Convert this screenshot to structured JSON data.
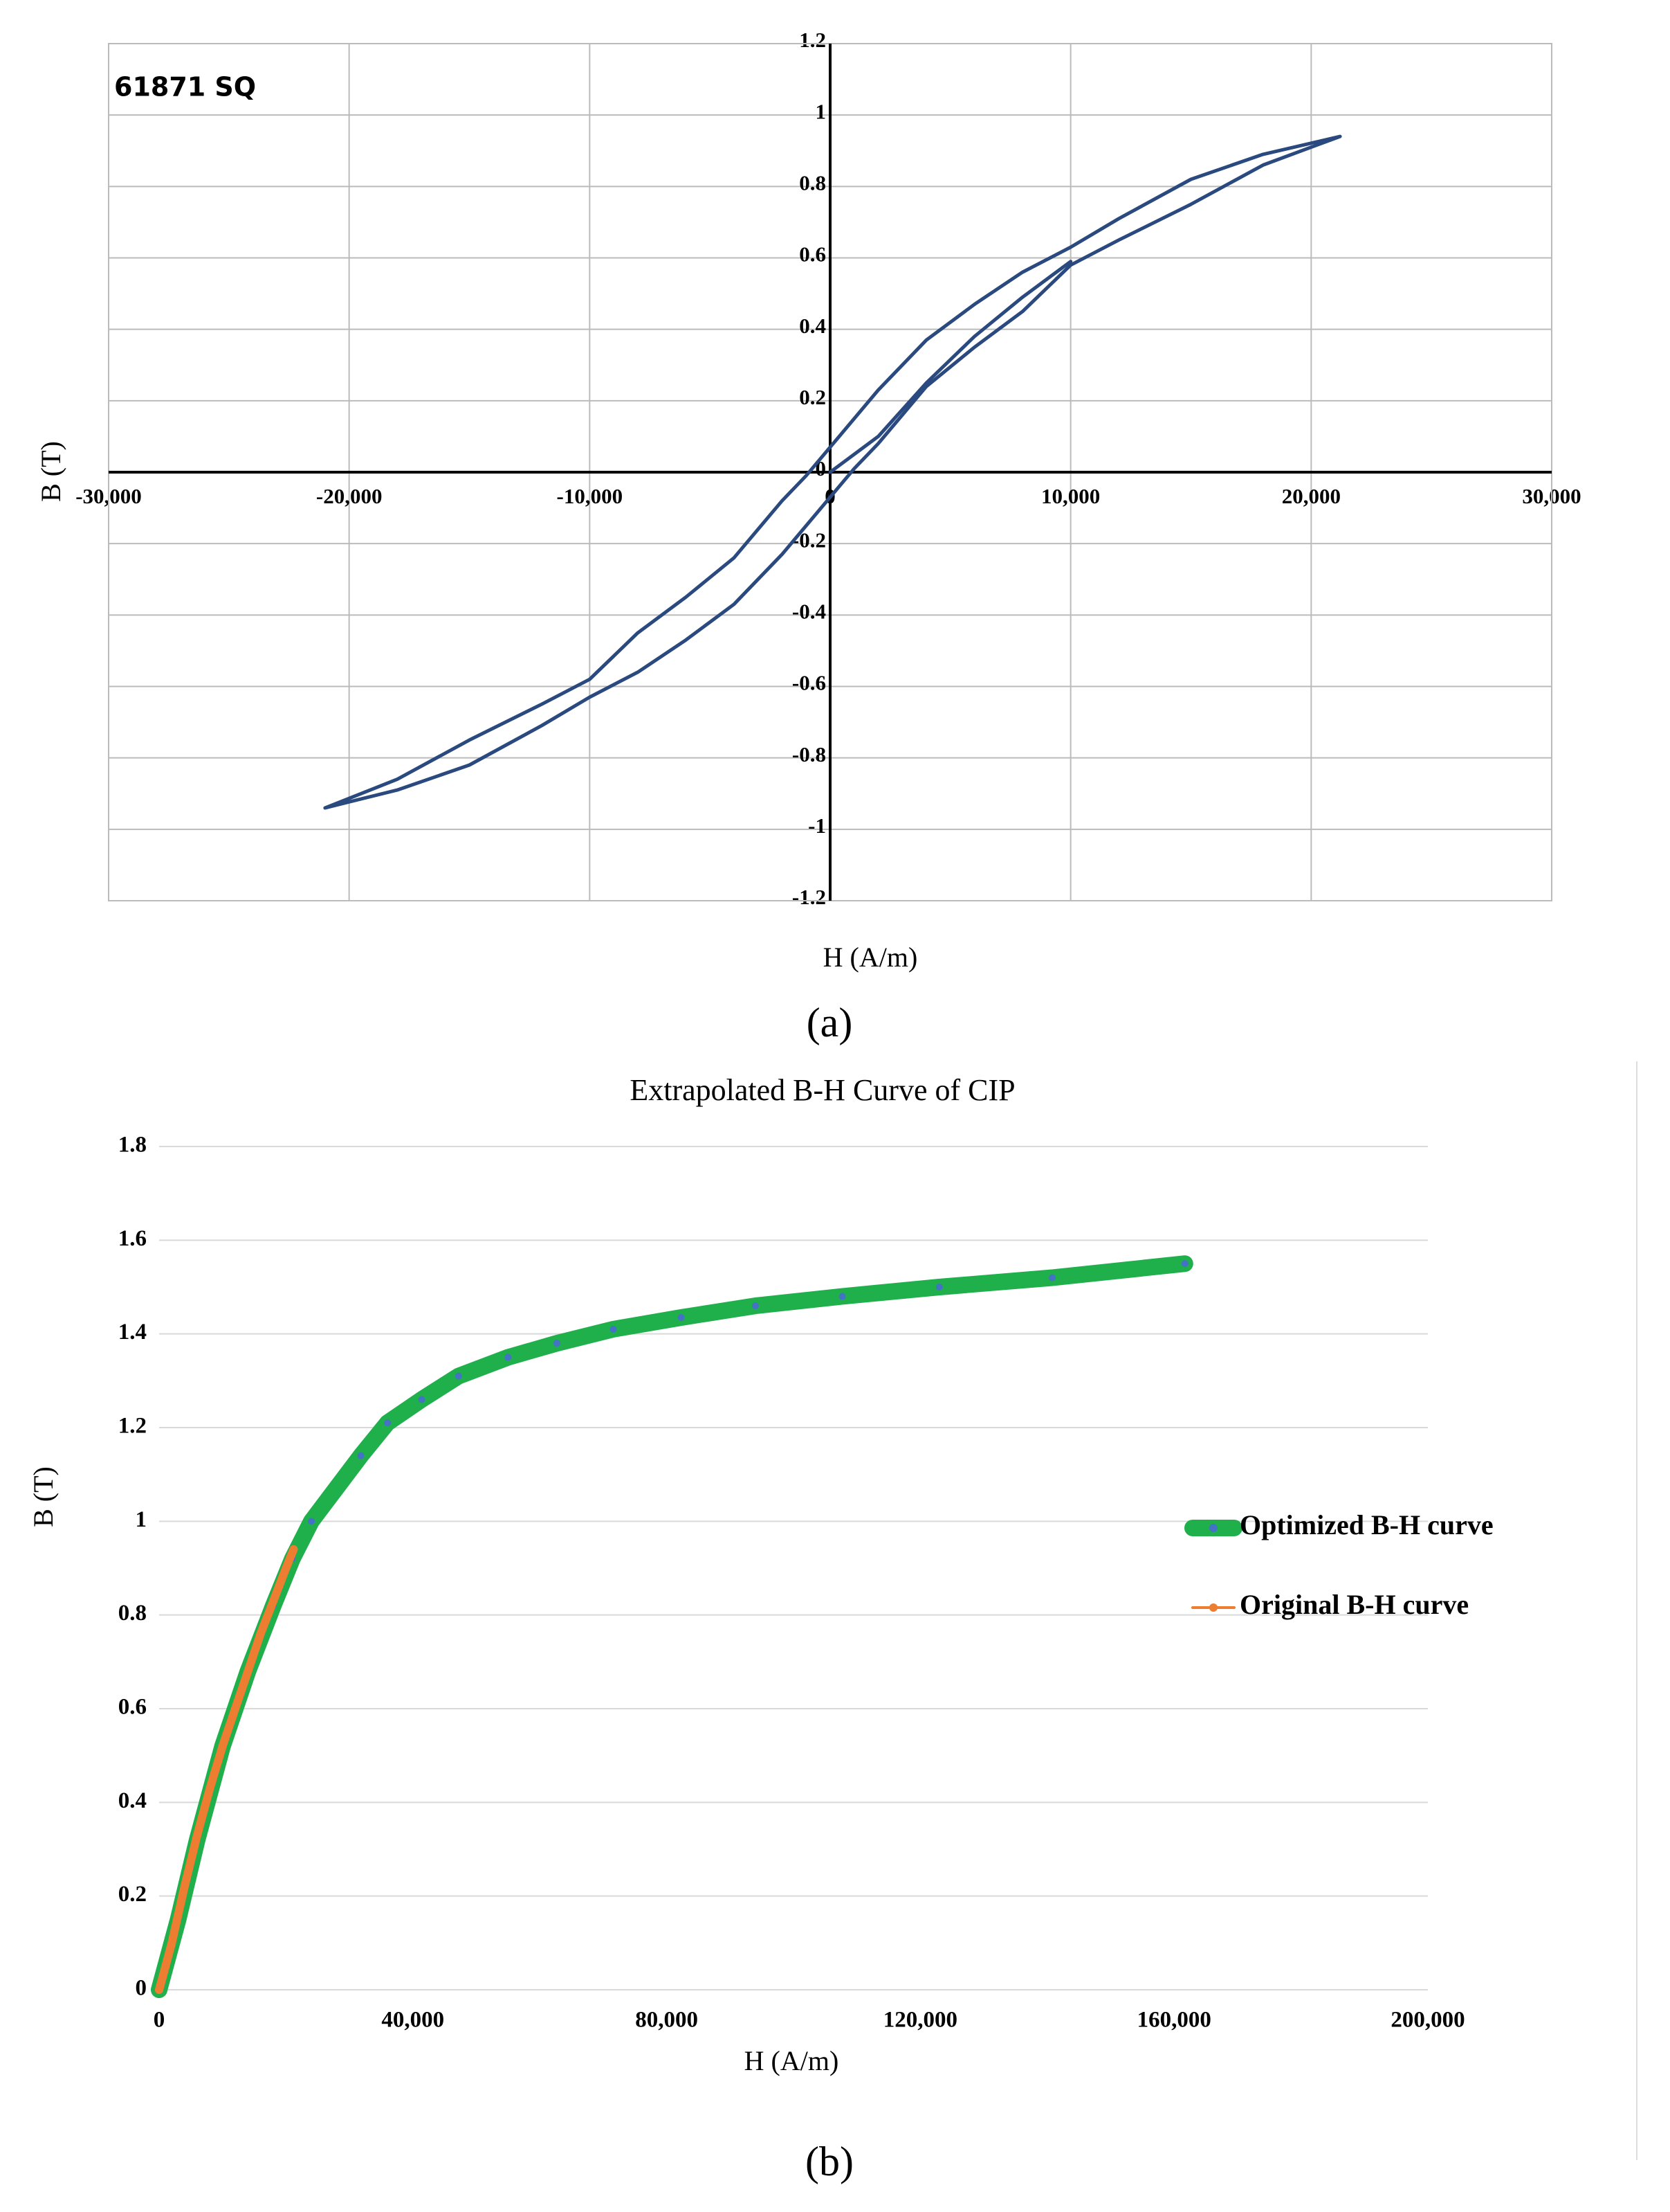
{
  "chart_data": [
    {
      "type": "line",
      "annotation": "61871 SQ",
      "x_label": "H (A/m)",
      "y_label": "B (T)",
      "caption": "(a)",
      "xlim": [
        -30000,
        30000
      ],
      "xticks": [
        {
          "value": -30000,
          "label": "-30,000"
        },
        {
          "value": -20000,
          "label": "-20,000"
        },
        {
          "value": -10000,
          "label": "-10,000"
        },
        0,
        {
          "value": 10000,
          "label": "10,000"
        },
        {
          "value": 20000,
          "label": "20,000"
        },
        {
          "value": 30000,
          "label": "30,000"
        }
      ],
      "ylim": [
        -1.2,
        1.2
      ],
      "yticks": [
        -1.2,
        -1,
        -0.8,
        -0.6,
        -0.4,
        -0.2,
        0,
        0.2,
        0.4,
        0.6,
        0.8,
        1,
        1.2
      ],
      "grid": true,
      "series": [
        {
          "color": "#2a4a7f",
          "x": [
            21200,
            18000,
            15000,
            12000,
            10000,
            8000,
            6000,
            4000,
            2000,
            0,
            -1000,
            -2000,
            -4000,
            -6000,
            -8000,
            -10000,
            -12000,
            -15000,
            -18000,
            -21000,
            -18000,
            -15000,
            -12000,
            -10000,
            -8000,
            -6000,
            -4000,
            -2000,
            0,
            1000,
            2000,
            4000,
            6000,
            8000,
            10000,
            12000,
            15000,
            18000,
            21200
          ],
          "values": [
            0.94,
            0.89,
            0.82,
            0.71,
            0.63,
            0.56,
            0.47,
            0.37,
            0.23,
            0.07,
            -0.01,
            -0.08,
            -0.24,
            -0.35,
            -0.45,
            -0.58,
            -0.65,
            -0.75,
            -0.86,
            -0.94,
            -0.89,
            -0.82,
            -0.71,
            -0.63,
            -0.56,
            -0.47,
            -0.37,
            -0.23,
            -0.07,
            0.01,
            0.08,
            0.24,
            0.35,
            0.45,
            0.58,
            0.65,
            0.75,
            0.86,
            0.94
          ]
        },
        {
          "color": "#2a4a7f",
          "x": [
            0,
            2000,
            4000,
            6000,
            8000,
            10000
          ],
          "values": [
            0,
            0.1,
            0.25,
            0.38,
            0.49,
            0.59
          ]
        }
      ]
    },
    {
      "type": "line",
      "title": "Extrapolated B-H Curve of CIP",
      "x_label": "H (A/m)",
      "y_label": "B (T)",
      "caption": "(b)",
      "xlim": [
        0,
        200000
      ],
      "xticks": [
        0,
        {
          "value": 40000,
          "label": "40,000"
        },
        {
          "value": 80000,
          "label": "80,000"
        },
        {
          "value": 120000,
          "label": "120,000"
        },
        {
          "value": 160000,
          "label": "160,000"
        },
        {
          "value": 200000,
          "label": "200,000"
        }
      ],
      "ylim": [
        0,
        1.8
      ],
      "yticks": [
        0,
        0.2,
        0.4,
        0.6,
        0.8,
        1,
        1.2,
        1.4,
        1.6,
        1.8
      ],
      "grid": true,
      "legend": "right",
      "series": [
        {
          "name": "Optimized B-H curve",
          "color": "#1fb04c",
          "marker_color": "#4472c4",
          "x": [
            0,
            3000,
            6000,
            10000,
            14000,
            18000,
            21000,
            24000,
            31800,
            36000,
            41400,
            47200,
            55000,
            62700,
            71600,
            82300,
            94000,
            107700,
            123000,
            140800,
            161700
          ],
          "values": [
            0,
            0.15,
            0.32,
            0.52,
            0.68,
            0.82,
            0.92,
            1.0,
            1.14,
            1.21,
            1.26,
            1.31,
            1.35,
            1.38,
            1.41,
            1.435,
            1.46,
            1.48,
            1.5,
            1.52,
            1.55
          ]
        },
        {
          "name": "Original B-H curve",
          "color": "#ed7d31",
          "marker_color": "#ed7d31",
          "x": [
            0,
            1000,
            2000,
            4000,
            6000,
            8000,
            10000,
            12000,
            14000,
            16000,
            18000,
            20000,
            21200
          ],
          "values": [
            0,
            0.05,
            0.1,
            0.22,
            0.33,
            0.43,
            0.52,
            0.6,
            0.68,
            0.76,
            0.83,
            0.9,
            0.94
          ]
        }
      ]
    }
  ]
}
